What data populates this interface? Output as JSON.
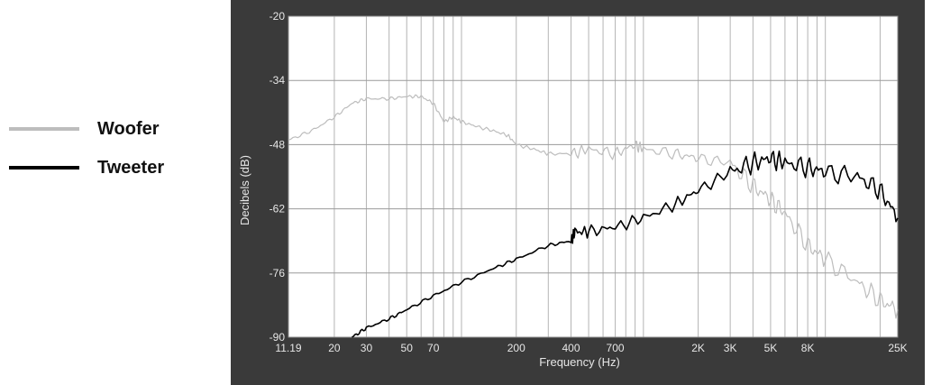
{
  "legend": {
    "items": [
      {
        "label": "Woofer",
        "color": "#bdbdbd"
      },
      {
        "label": "Tweeter",
        "color": "#000000"
      }
    ]
  },
  "chart_data": {
    "type": "line",
    "title": "",
    "xlabel": "Frequency (Hz)",
    "ylabel": "Decibels (dB)",
    "x_scale": "log",
    "xlim": [
      11.19,
      25000
    ],
    "ylim": [
      -90,
      -20
    ],
    "x_ticks": [
      {
        "value": 11.19,
        "label": "11.19"
      },
      {
        "value": 20,
        "label": "20"
      },
      {
        "value": 30,
        "label": "30"
      },
      {
        "value": 50,
        "label": "50"
      },
      {
        "value": 70,
        "label": "70"
      },
      {
        "value": 200,
        "label": "200"
      },
      {
        "value": 400,
        "label": "400"
      },
      {
        "value": 700,
        "label": "700"
      },
      {
        "value": 2000,
        "label": "2K"
      },
      {
        "value": 3000,
        "label": "3K"
      },
      {
        "value": 5000,
        "label": "5K"
      },
      {
        "value": 8000,
        "label": "8K"
      },
      {
        "value": 25000,
        "label": "25K"
      }
    ],
    "y_ticks": [
      -20,
      -34,
      -48,
      -62,
      -76,
      -90
    ],
    "grid": true,
    "legend_position": "left",
    "series": [
      {
        "name": "Woofer",
        "color": "#bdbdbd",
        "x": [
          11.19,
          15,
          20,
          25,
          30,
          40,
          50,
          60,
          70,
          80,
          90,
          100,
          120,
          150,
          180,
          200,
          250,
          300,
          400,
          500,
          700,
          900,
          1000,
          1500,
          2000,
          3000,
          4000,
          5000,
          6000,
          8000,
          10000,
          15000,
          20000,
          25000
        ],
        "y": [
          -47,
          -45,
          -42,
          -39,
          -38,
          -38,
          -37.5,
          -37.5,
          -39,
          -43,
          -42,
          -43,
          -44,
          -45,
          -46,
          -48,
          -49,
          -50,
          -50,
          -49,
          -50,
          -48,
          -49,
          -50,
          -51,
          -52,
          -57,
          -60,
          -63,
          -70,
          -73,
          -78,
          -82,
          -84
        ]
      },
      {
        "name": "Tweeter",
        "color": "#000000",
        "x": [
          25,
          30,
          40,
          50,
          70,
          100,
          150,
          200,
          300,
          400,
          420,
          500,
          700,
          1000,
          1500,
          2000,
          3000,
          4000,
          5000,
          6000,
          8000,
          10000,
          15000,
          20000,
          25000
        ],
        "y": [
          -90,
          -88,
          -86,
          -84,
          -81,
          -78,
          -75,
          -73,
          -70,
          -69,
          -67,
          -67,
          -66,
          -64,
          -61,
          -58,
          -54,
          -52,
          -51,
          -52,
          -53,
          -54,
          -55,
          -58,
          -64
        ]
      }
    ]
  }
}
